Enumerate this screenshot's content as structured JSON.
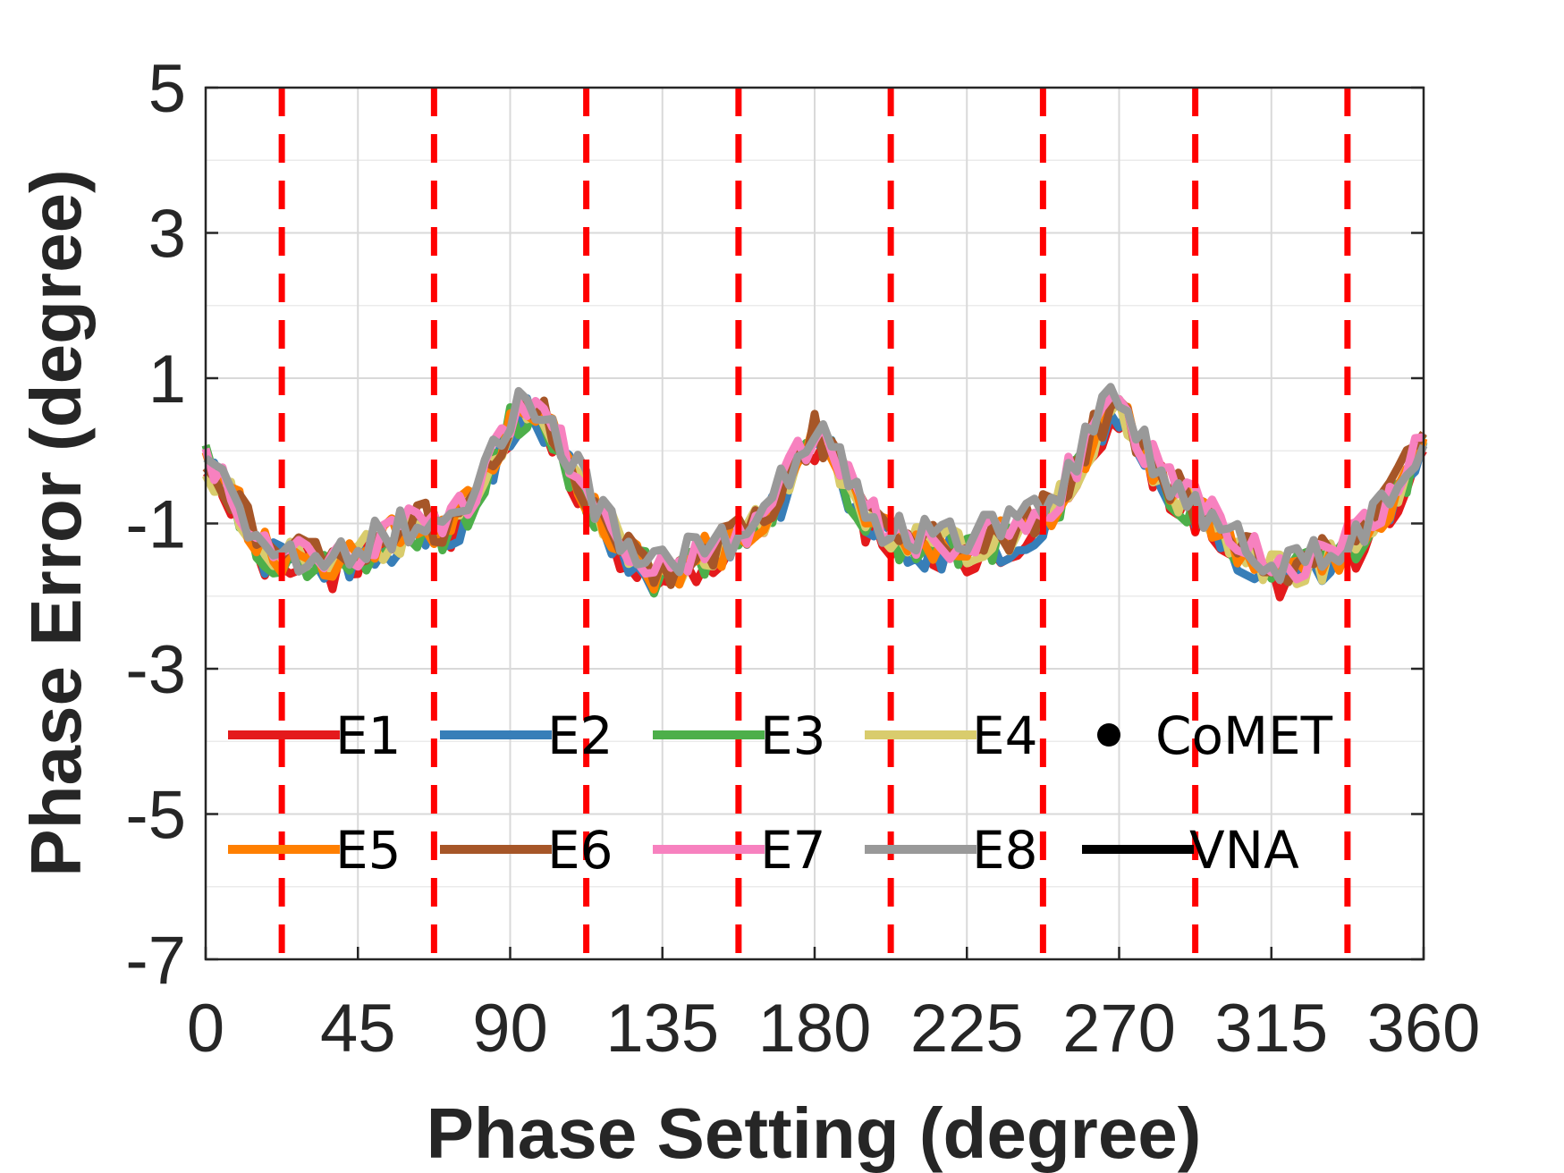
{
  "chart_data": {
    "type": "line",
    "title": "",
    "xlabel": "Phase Setting (degree)",
    "ylabel": "Phase Error (degree)",
    "xlim": [
      0,
      360
    ],
    "ylim": [
      -7,
      5
    ],
    "xticks": [
      0,
      45,
      90,
      135,
      180,
      225,
      270,
      315,
      360
    ],
    "xtick_labels": [
      "0",
      "45",
      "90",
      "135",
      "180",
      "225",
      "270",
      "315",
      "360"
    ],
    "yticks": [
      -7,
      -5,
      -3,
      -1,
      1,
      3,
      5
    ],
    "ytick_labels": [
      "-7",
      "-5",
      "-3",
      "-1",
      "1",
      "3",
      "5"
    ],
    "grid": true,
    "vertical_markers": [
      22.5,
      67.5,
      112.5,
      157.5,
      202.5,
      247.5,
      292.5,
      337.5
    ],
    "vertical_marker_color": "#ff0000",
    "x": [
      0,
      5,
      10,
      15,
      20,
      25,
      30,
      35,
      40,
      45,
      50,
      55,
      60,
      65,
      70,
      75,
      80,
      85,
      90,
      95,
      100,
      105,
      110,
      115,
      120,
      125,
      130,
      135,
      140,
      145,
      150,
      155,
      160,
      165,
      170,
      175,
      180,
      185,
      190,
      195,
      200,
      205,
      210,
      215,
      220,
      225,
      230,
      235,
      240,
      245,
      250,
      255,
      260,
      265,
      270,
      275,
      280,
      285,
      290,
      295,
      300,
      305,
      310,
      315,
      320,
      325,
      330,
      335,
      340,
      345,
      350,
      355,
      360
    ],
    "base_profile": [
      -0.1,
      -0.5,
      -0.8,
      -1.3,
      -1.4,
      -1.5,
      -1.5,
      -1.6,
      -1.5,
      -1.4,
      -1.3,
      -1.2,
      -1.1,
      -1.0,
      -1.1,
      -0.9,
      -0.6,
      -0.1,
      0.4,
      0.6,
      0.4,
      0.0,
      -0.4,
      -0.8,
      -1.1,
      -1.4,
      -1.6,
      -1.7,
      -1.6,
      -1.5,
      -1.4,
      -1.3,
      -1.1,
      -0.9,
      -0.6,
      -0.2,
      0.2,
      0.0,
      -0.5,
      -0.9,
      -1.1,
      -1.2,
      -1.3,
      -1.3,
      -1.3,
      -1.3,
      -1.2,
      -1.2,
      -1.1,
      -1.0,
      -0.8,
      -0.4,
      0.0,
      0.4,
      0.6,
      0.2,
      -0.2,
      -0.5,
      -0.7,
      -0.9,
      -1.1,
      -1.3,
      -1.5,
      -1.6,
      -1.7,
      -1.6,
      -1.5,
      -1.4,
      -1.3,
      -1.0,
      -0.7,
      -0.3,
      0.1
    ],
    "series": [
      {
        "name": "E1",
        "color": "#e41a1c"
      },
      {
        "name": "E2",
        "color": "#377eb8"
      },
      {
        "name": "E3",
        "color": "#4daf4a"
      },
      {
        "name": "E4",
        "color": "#d9cc6d"
      },
      {
        "name": "E5",
        "color": "#ff7f00"
      },
      {
        "name": "E6",
        "color": "#a65628"
      },
      {
        "name": "E7",
        "color": "#f781bf"
      },
      {
        "name": "E8",
        "color": "#999999"
      }
    ],
    "legend": {
      "placement": "bottom-left",
      "entries": [
        {
          "label": "E1",
          "kind": "line",
          "color": "#e41a1c"
        },
        {
          "label": "E2",
          "kind": "line",
          "color": "#377eb8"
        },
        {
          "label": "E3",
          "kind": "line",
          "color": "#4daf4a"
        },
        {
          "label": "E4",
          "kind": "line",
          "color": "#d9cc6d"
        },
        {
          "label": "CoMET",
          "kind": "marker",
          "color": "#000000"
        },
        {
          "label": "E5",
          "kind": "line",
          "color": "#ff7f00"
        },
        {
          "label": "E6",
          "kind": "line",
          "color": "#a65628"
        },
        {
          "label": "E7",
          "kind": "line",
          "color": "#f781bf"
        },
        {
          "label": "E8",
          "kind": "line",
          "color": "#999999"
        },
        {
          "label": "VNA",
          "kind": "line",
          "color": "#000000"
        }
      ]
    }
  }
}
